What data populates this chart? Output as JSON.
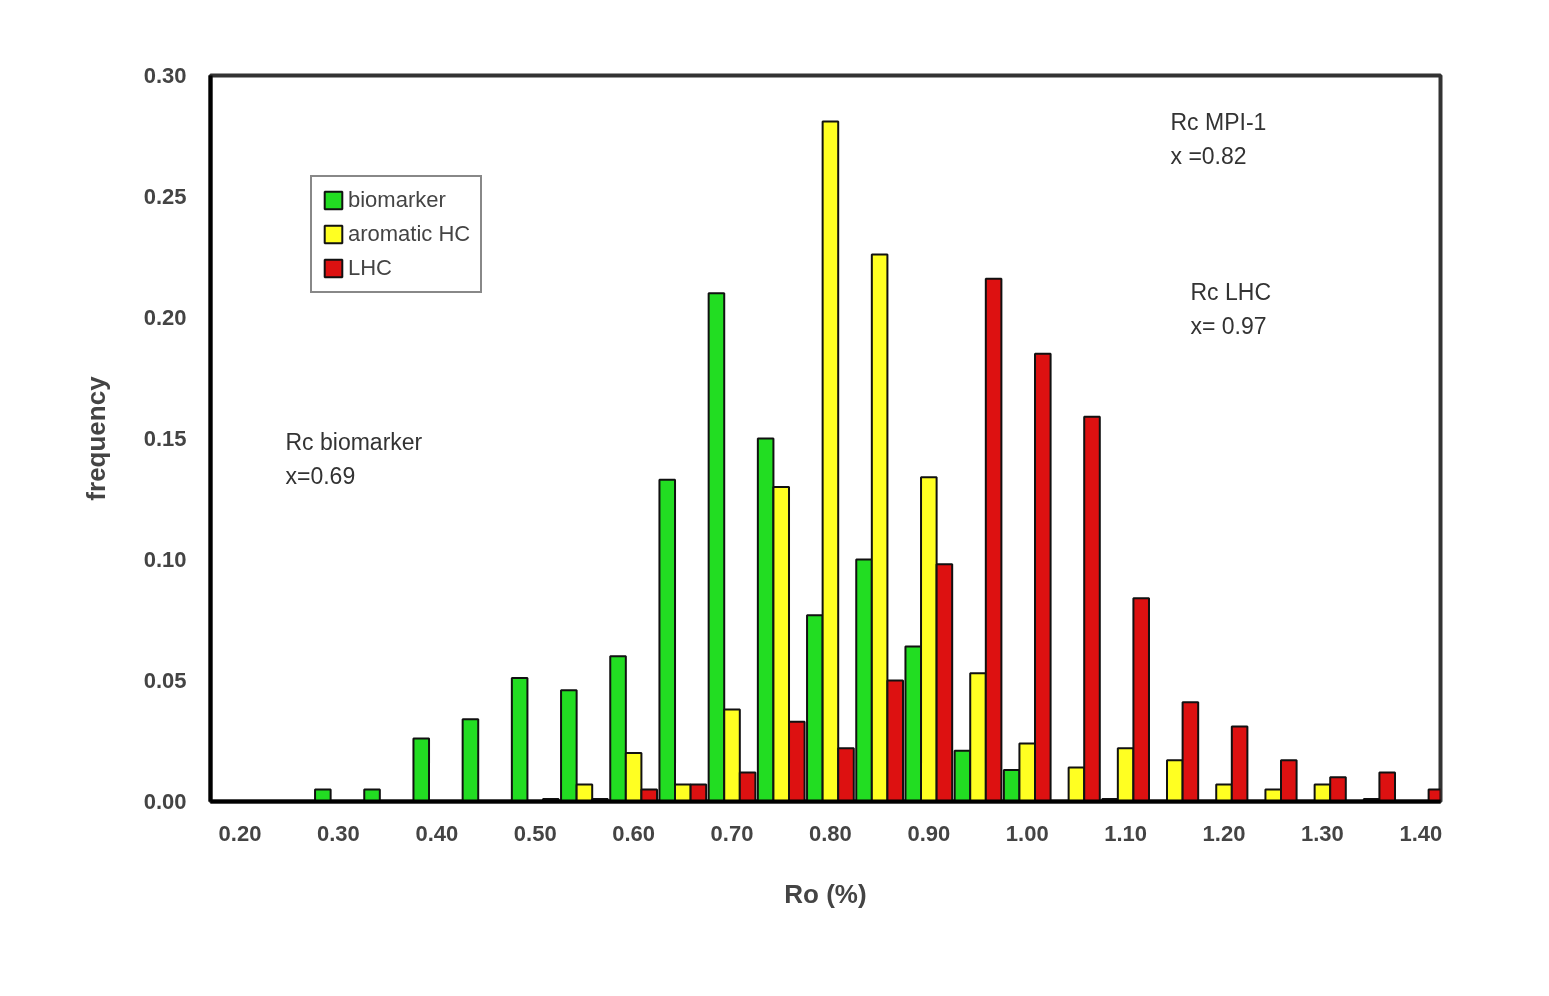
{
  "chart_data": {
    "type": "bar",
    "xlabel": "Ro (%)",
    "ylabel": "frequency",
    "x": [
      0.3,
      0.35,
      0.4,
      0.45,
      0.5,
      0.55,
      0.6,
      0.65,
      0.7,
      0.75,
      0.8,
      0.85,
      0.9,
      0.95,
      1.0,
      1.05,
      1.1,
      1.15,
      1.2,
      1.25,
      1.3,
      1.35,
      1.4
    ],
    "series": [
      {
        "name": "biomarker",
        "color": "#22dd22",
        "values": [
          0.005,
          0.005,
          0.026,
          0.034,
          0.051,
          0.046,
          0.06,
          0.133,
          0.21,
          0.15,
          0.077,
          0.1,
          0.064,
          0.021,
          0.013,
          null,
          0.001,
          null,
          null,
          null,
          null,
          null,
          null
        ]
      },
      {
        "name": "aromatic HC",
        "color": "#ffff22",
        "values": [
          null,
          null,
          null,
          null,
          null,
          0.007,
          0.02,
          0.007,
          0.038,
          0.13,
          0.281,
          0.226,
          0.134,
          0.053,
          0.024,
          0.014,
          0.022,
          0.017,
          0.007,
          0.005,
          0.007,
          0.001,
          null
        ]
      },
      {
        "name": "LHC",
        "color": "#dd1111",
        "values": [
          null,
          null,
          null,
          null,
          0.001,
          0.001,
          0.005,
          0.007,
          0.012,
          0.033,
          0.022,
          0.05,
          0.098,
          0.216,
          0.185,
          0.159,
          0.084,
          0.041,
          0.031,
          0.017,
          0.01,
          0.012,
          0.005
        ]
      }
    ],
    "xlim": [
      0.17,
      1.42
    ],
    "xticks": [
      {
        "value": 0.2,
        "label": "0.20"
      },
      {
        "value": 0.3,
        "label": "0.30"
      },
      {
        "value": 0.4,
        "label": "0.40"
      },
      {
        "value": 0.5,
        "label": "0.50"
      },
      {
        "value": 0.6,
        "label": "0.60"
      },
      {
        "value": 0.7,
        "label": "0.70"
      },
      {
        "value": 0.8,
        "label": "0.80"
      },
      {
        "value": 0.9,
        "label": "0.90"
      },
      {
        "value": 1.0,
        "label": "1.00"
      },
      {
        "value": 1.1,
        "label": "1.10"
      },
      {
        "value": 1.2,
        "label": "1.20"
      },
      {
        "value": 1.3,
        "label": "1.30"
      },
      {
        "value": 1.4,
        "label": "1.40"
      }
    ],
    "ylim": [
      0,
      0.3
    ],
    "yticks": [
      {
        "value": 0,
        "label": "0.00"
      },
      {
        "value": 0.05,
        "label": "0.05"
      },
      {
        "value": 0.1,
        "label": "0.10"
      },
      {
        "value": 0.15,
        "label": "0.15"
      },
      {
        "value": 0.2,
        "label": "0.20"
      },
      {
        "value": 0.25,
        "label": "0.25"
      },
      {
        "value": 0.3,
        "label": "0.30"
      }
    ],
    "legend": "top left",
    "annotations": [
      "Rc MPI-1\nx =0.82",
      "Rc LHC\nx= 0.97",
      "Rc biomarker\nx=0.69"
    ]
  }
}
